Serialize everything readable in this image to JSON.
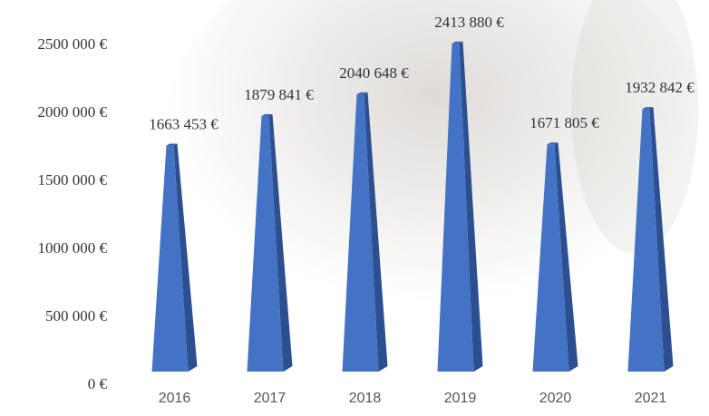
{
  "chart_data": {
    "type": "bar",
    "categories": [
      "2016",
      "2017",
      "2018",
      "2019",
      "2020",
      "2021"
    ],
    "values": [
      1663453,
      1879841,
      2040648,
      2413880,
      1671805,
      1932842
    ],
    "value_labels": [
      "1663 453 €",
      "1879 841 €",
      "2040 648 €",
      "2413 880 €",
      "1671 805 €",
      "1932 842 €"
    ],
    "color": "#4472c4",
    "ylim": [
      0,
      2500000
    ],
    "yticks": [
      {
        "value": 0,
        "label": "0 €"
      },
      {
        "value": 500000,
        "label": "500 000 €"
      },
      {
        "value": 1000000,
        "label": "1000 000 €"
      },
      {
        "value": 1500000,
        "label": "1500 000 €"
      },
      {
        "value": 2000000,
        "label": "2000 000 €"
      },
      {
        "value": 2500000,
        "label": "2500 000 €"
      }
    ]
  }
}
